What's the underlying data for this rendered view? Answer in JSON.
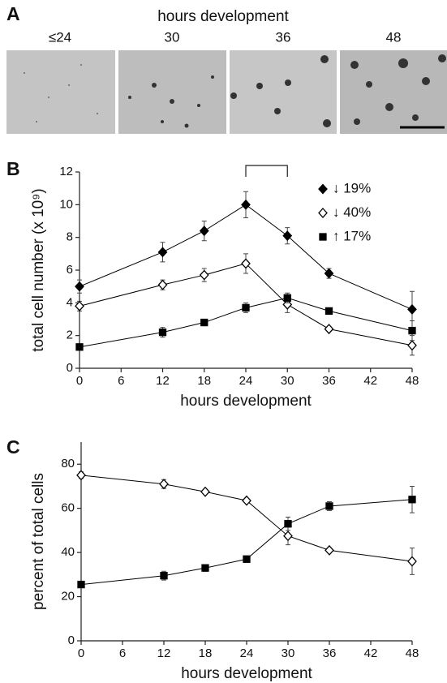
{
  "panel_a": {
    "label": "A",
    "title": "hours development",
    "images": [
      "≤24",
      "30",
      "36",
      "48"
    ]
  },
  "chart_data": [
    {
      "type": "line",
      "label": "B",
      "xlabel": "hours development",
      "ylabel": "total cell number (x 10⁹)",
      "xlim": [
        0,
        48
      ],
      "xticks": [
        0,
        6,
        12,
        18,
        24,
        30,
        36,
        42,
        48
      ],
      "ylim": [
        0,
        12
      ],
      "yticks": [
        0,
        2,
        4,
        6,
        8,
        10,
        12
      ],
      "x": [
        0,
        12,
        18,
        24,
        30,
        36,
        48
      ],
      "bracket_x": [
        24,
        30
      ],
      "series": [
        {
          "name": "↓ 19%",
          "color": "#000",
          "marker": "diamond",
          "filled": true,
          "values": [
            5.0,
            7.1,
            8.4,
            10.0,
            8.1,
            5.8,
            3.6
          ],
          "errors": [
            0.4,
            0.6,
            0.6,
            0.8,
            0.5,
            0.3,
            1.1
          ]
        },
        {
          "name": "↓ 40%",
          "color": "#000",
          "marker": "diamond",
          "filled": false,
          "values": [
            3.8,
            5.1,
            5.7,
            6.4,
            3.9,
            2.4,
            1.4
          ],
          "errors": [
            0.3,
            0.3,
            0.4,
            0.6,
            0.5,
            0.1,
            0.6
          ]
        },
        {
          "name": "↑ 17%",
          "color": "#000",
          "marker": "square",
          "filled": true,
          "values": [
            1.3,
            2.2,
            2.8,
            3.7,
            4.3,
            3.5,
            2.3
          ],
          "errors": [
            0.1,
            0.3,
            0.2,
            0.3,
            0.3,
            0.1,
            0.6
          ]
        }
      ]
    },
    {
      "type": "line",
      "label": "C",
      "xlabel": "hours development",
      "ylabel": "percent of total cells",
      "xlim": [
        0,
        48
      ],
      "xticks": [
        0,
        6,
        12,
        18,
        24,
        30,
        36,
        42,
        48
      ],
      "ylim": [
        0,
        90
      ],
      "yticks": [
        0,
        20,
        40,
        60,
        80
      ],
      "x": [
        0,
        12,
        18,
        24,
        30,
        36,
        48
      ],
      "series": [
        {
          "color": "#000",
          "marker": "diamond",
          "filled": false,
          "values": [
            75,
            71,
            67.5,
            63.5,
            47.5,
            41,
            36
          ],
          "errors": [
            1.5,
            2,
            1,
            1,
            4,
            1,
            6
          ]
        },
        {
          "color": "#000",
          "marker": "square",
          "filled": true,
          "values": [
            25.5,
            29.5,
            33,
            37,
            53,
            61,
            64
          ],
          "errors": [
            1,
            2,
            1.5,
            1,
            3,
            2,
            6
          ]
        }
      ]
    }
  ]
}
